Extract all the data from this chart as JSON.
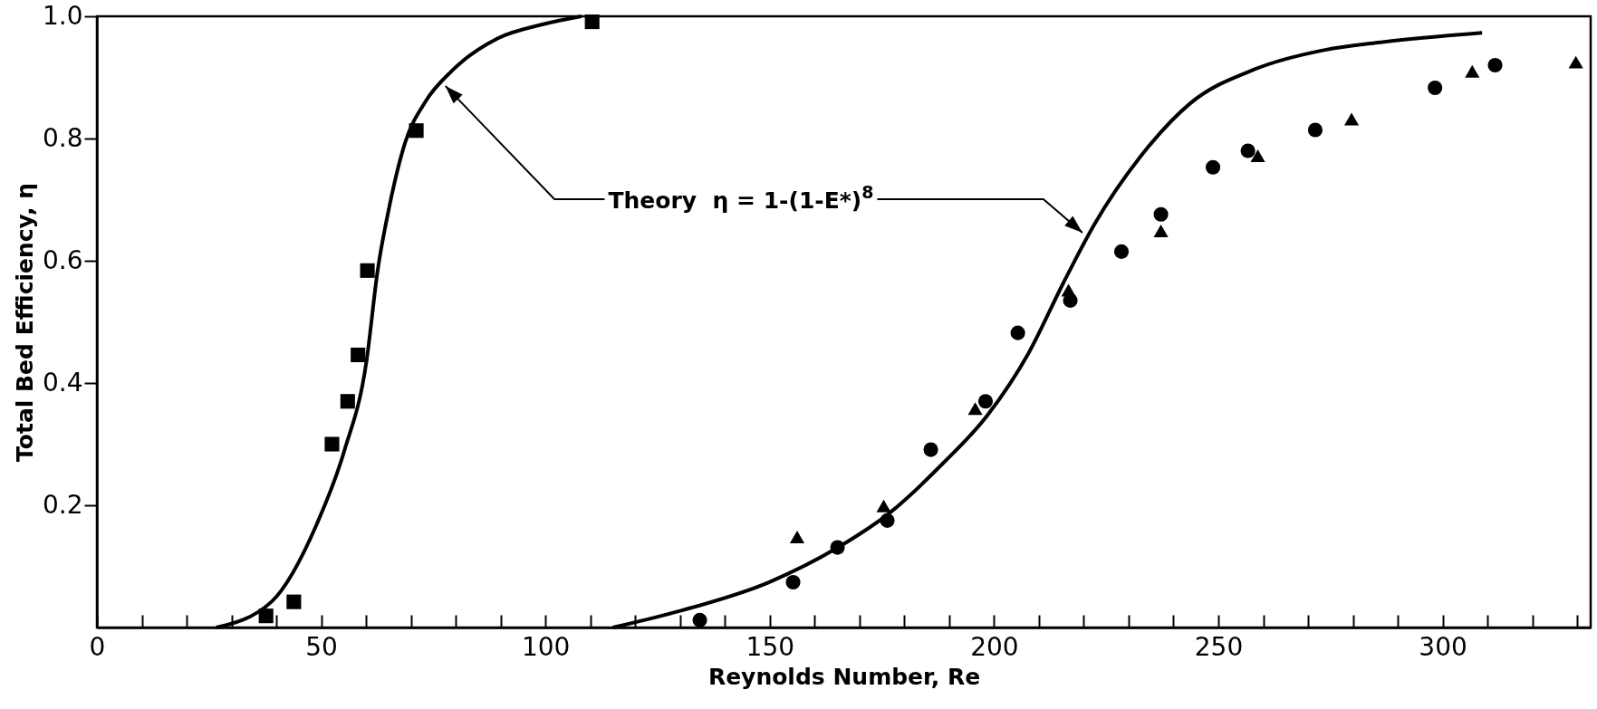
{
  "chart_data": {
    "type": "scatter",
    "xlabel": "Reynolds Number, Re",
    "ylabel": "Total Bed Efficiency, η",
    "xlim": [
      0,
      333
    ],
    "ylim": [
      0,
      1
    ],
    "xticks": [
      0,
      {
        "value": 10,
        "label": null
      },
      {
        "value": 20,
        "label": null
      },
      {
        "value": 30,
        "label": null
      },
      {
        "value": 40,
        "label": null
      },
      50,
      {
        "value": 60,
        "label": null
      },
      {
        "value": 70,
        "label": null
      },
      {
        "value": 80,
        "label": null
      },
      {
        "value": 90,
        "label": null
      },
      100,
      {
        "value": 110,
        "label": null
      },
      {
        "value": 120,
        "label": null
      },
      {
        "value": 130,
        "label": null
      },
      {
        "value": 140,
        "label": null
      },
      150,
      {
        "value": 160,
        "label": null
      },
      {
        "value": 170,
        "label": null
      },
      {
        "value": 180,
        "label": null
      },
      {
        "value": 190,
        "label": null
      },
      200,
      {
        "value": 210,
        "label": null
      },
      {
        "value": 220,
        "label": null
      },
      {
        "value": 230,
        "label": null
      },
      {
        "value": 240,
        "label": null
      },
      250,
      {
        "value": 260,
        "label": null
      },
      {
        "value": 270,
        "label": null
      },
      {
        "value": 280,
        "label": null
      },
      {
        "value": 290,
        "label": null
      },
      300,
      {
        "value": 310,
        "label": null
      },
      {
        "value": 320,
        "label": null
      },
      {
        "value": 330,
        "label": null
      }
    ],
    "yticks": [
      0.2,
      0.4,
      0.6,
      0.8,
      {
        "value": 1,
        "label": "1.0"
      }
    ],
    "grid": false,
    "annotations": [
      "Theory  η = 1-(1-E*)$^{8}$"
    ],
    "series": [
      {
        "marker": "square",
        "color": "#000000",
        "x": [
          37.7,
          43.9,
          52.4,
          55.9,
          58.2,
          60.3,
          71.2,
          110.4
        ],
        "values": [
          0.019,
          0.042,
          0.3,
          0.37,
          0.446,
          0.584,
          0.813,
          0.991
        ]
      },
      {
        "marker": "circle",
        "color": "#000000",
        "x": [
          134.4,
          155.2,
          165.1,
          176.2,
          185.9,
          198.1,
          205.3,
          217.0,
          228.4,
          237.2,
          248.8,
          256.6,
          271.6,
          298.3,
          311.7
        ],
        "values": [
          0.012,
          0.074,
          0.131,
          0.175,
          0.291,
          0.37,
          0.482,
          0.535,
          0.615,
          0.676,
          0.753,
          0.78,
          0.814,
          0.883,
          0.92
        ]
      },
      {
        "marker": "triangle",
        "color": "#000000",
        "x": [
          156.1,
          175.4,
          195.8,
          216.6,
          237.2,
          258.8,
          279.7,
          306.6,
          329.7
        ],
        "values": [
          0.148,
          0.199,
          0.358,
          0.552,
          0.649,
          0.772,
          0.832,
          0.91,
          0.925
        ]
      },
      {
        "type": "line",
        "marker": "none",
        "color": "#000000",
        "x": [
          26.6,
          38.9,
          49,
          55.1,
          60.1,
          62.6,
          65.2,
          68.7,
          73.2,
          79.3,
          89.4,
          99.5,
          108
        ],
        "values": [
          0,
          0.042,
          0.169,
          0.288,
          0.436,
          0.585,
          0.689,
          0.793,
          0.86,
          0.912,
          0.964,
          0.987,
          1.0
        ]
      },
      {
        "type": "line",
        "marker": "none",
        "color": "#000000",
        "x": [
          115,
          130.4,
          149.8,
          165.2,
          176.8,
          188.4,
          198.5,
          207.7,
          215.4,
          222.4,
          232.7,
          243.8,
          258,
          273.8,
          285.6,
          308.8
        ],
        "values": [
          0,
          0.028,
          0.074,
          0.131,
          0.188,
          0.267,
          0.347,
          0.449,
          0.563,
          0.66,
          0.771,
          0.858,
          0.913,
          0.945,
          0.957,
          0.973
        ]
      }
    ]
  }
}
